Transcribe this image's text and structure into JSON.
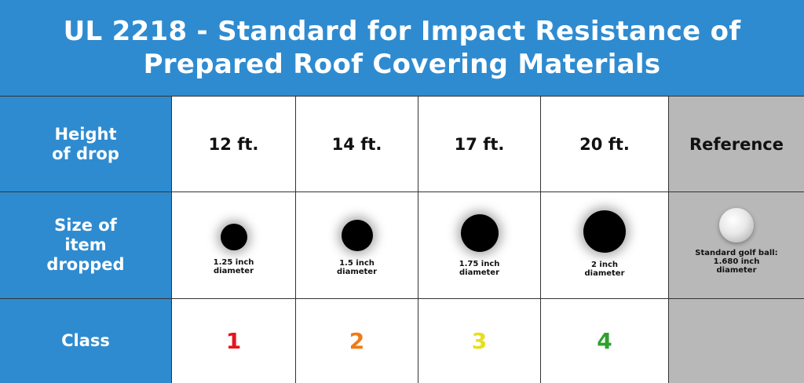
{
  "title": {
    "line1": "UL 2218 - Standard for Impact Resistance of",
    "line2": "Prepared Roof Covering Materials"
  },
  "rows": {
    "height": {
      "line1": "Height",
      "line2": "of drop"
    },
    "size": {
      "line1": "Size of",
      "line2": "item",
      "line3": "dropped"
    },
    "class": {
      "label": "Class"
    }
  },
  "columns": [
    {
      "height": "12 ft.",
      "caption1": "1.25 inch",
      "caption2": "diameter",
      "class": "1",
      "class_color": "#e8141b"
    },
    {
      "height": "14 ft.",
      "caption1": "1.5 inch",
      "caption2": "diameter",
      "class": "2",
      "class_color": "#f07b16"
    },
    {
      "height": "17 ft.",
      "caption1": "1.75 inch",
      "caption2": "diameter",
      "class": "3",
      "class_color": "#e6df1c"
    },
    {
      "height": "20 ft.",
      "caption1": "2 inch",
      "caption2": "diameter",
      "class": "4",
      "class_color": "#2ea12c"
    }
  ],
  "reference": {
    "label": "Reference",
    "caption1": "Standard golf ball:",
    "caption2": "1.680 inch",
    "caption3": "diameter",
    "icon": "golf-ball-icon"
  },
  "colors": {
    "header_blue": "#2e8bd0",
    "reference_grey": "#b8b8b8"
  }
}
